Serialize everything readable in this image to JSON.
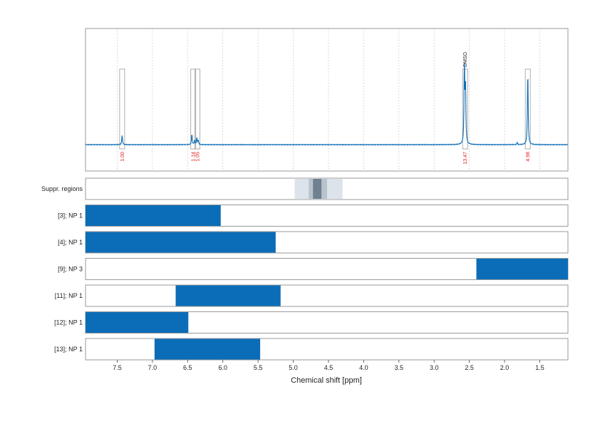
{
  "chart_data": {
    "type": "nmr-spectrum",
    "xlabel": "Chemical shift [ppm]",
    "xlim": [
      7.95,
      1.1
    ],
    "xticks": [
      "7.5",
      "7.0",
      "6.5",
      "6.0",
      "5.5",
      "5.0",
      "4.5",
      "4.0",
      "3.5",
      "3.0",
      "2.5",
      "2.0",
      "1.5"
    ],
    "grid": "vertical-dotted",
    "spectrum": {
      "line_color": "#0b6db7",
      "peaks": [
        {
          "ppm": 7.43,
          "height": 0.09
        },
        {
          "ppm": 6.44,
          "height": 0.1
        },
        {
          "ppm": 6.4,
          "height": 0.04
        },
        {
          "ppm": 6.37,
          "height": 0.06
        },
        {
          "ppm": 6.35,
          "height": 0.04
        },
        {
          "ppm": 2.57,
          "height": 0.75
        },
        {
          "ppm": 2.555,
          "height": 0.55
        },
        {
          "ppm": 1.67,
          "height": 0.71
        },
        {
          "ppm": 1.82,
          "height": 0.02
        }
      ]
    },
    "integrations": [
      {
        "ppm": 7.43,
        "label": "1.00"
      },
      {
        "ppm": 6.42,
        "label": "1.14"
      },
      {
        "ppm": 6.36,
        "label": "1.05"
      },
      {
        "ppm": 2.56,
        "label": "13.47",
        "annotation": "DMSO"
      },
      {
        "ppm": 1.67,
        "label": "4.98"
      }
    ],
    "suppression_regions": {
      "label": "Suppr. regions",
      "bands": [
        {
          "from": 4.98,
          "to": 4.3,
          "shade": "#dde3ea"
        },
        {
          "from": 4.78,
          "to": 4.52,
          "shade": "#b8c3ce"
        },
        {
          "from": 4.72,
          "to": 4.6,
          "shade": "#6f8190"
        }
      ]
    },
    "fragment_rows": [
      {
        "label": "[3]; NP 1",
        "from": 7.95,
        "to": 6.03
      },
      {
        "label": "[4]; NP 1",
        "from": 7.95,
        "to": 5.25
      },
      {
        "label": "[9]; NP 3",
        "from": 2.4,
        "to": 1.1
      },
      {
        "label": "[11]; NP 1",
        "from": 6.67,
        "to": 5.18
      },
      {
        "label": "[12]; NP 1",
        "from": 7.95,
        "to": 6.49
      },
      {
        "label": "[13]; NP 1",
        "from": 6.97,
        "to": 5.47
      }
    ],
    "bar_color": "#0b6db7"
  }
}
